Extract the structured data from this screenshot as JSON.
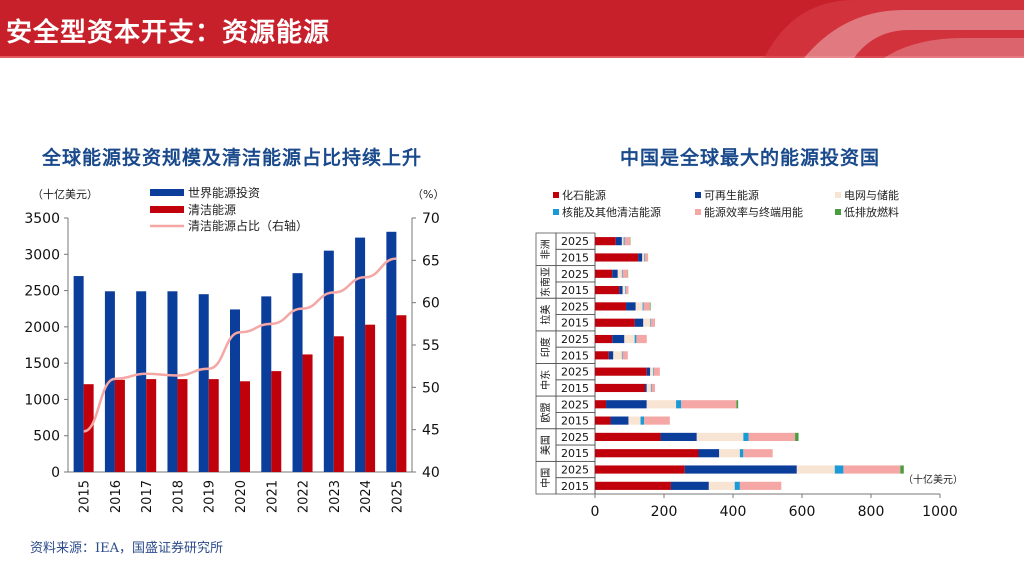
{
  "header": {
    "title": "安全型资本开支：资源能源"
  },
  "colors": {
    "brand": "#c8202a",
    "blue": "#0b3d9a",
    "red": "#c0000b",
    "pink": "#f4a7a4",
    "lightblue": "#1a9bd7",
    "cream": "#f8e4d2",
    "green": "#4a9d3e"
  },
  "source_note": "资料来源：IEA，国盛证券研究所",
  "chart_data": [
    {
      "type": "bar",
      "title": "全球能源投资规模及清洁能源占比持续上升",
      "left_axis_unit": "（十亿美元）",
      "right_axis_unit": "（%）",
      "categories": [
        "2015",
        "2016",
        "2017",
        "2018",
        "2019",
        "2020",
        "2021",
        "2022",
        "2023",
        "2024",
        "2025"
      ],
      "ylim": [
        0,
        3500
      ],
      "yticks": [
        "0",
        "500",
        "1000",
        "1500",
        "2000",
        "2500",
        "3000",
        "3500"
      ],
      "y2lim": [
        40,
        70
      ],
      "y2ticks": [
        "40",
        "45",
        "50",
        "55",
        "60",
        "65",
        "70"
      ],
      "series": [
        {
          "name": "世界能源投资",
          "values": [
            2700,
            2490,
            2490,
            2490,
            2450,
            2240,
            2420,
            2740,
            3050,
            3230,
            3310
          ]
        },
        {
          "name": "清洁能源",
          "values": [
            1210,
            1270,
            1280,
            1280,
            1280,
            1250,
            1390,
            1620,
            1870,
            2030,
            2160
          ]
        },
        {
          "name": "清洁能源占比（右轴）",
          "values": [
            44.8,
            51.0,
            51.6,
            51.4,
            52.2,
            56.5,
            57.5,
            59.3,
            61.2,
            63.0,
            65.2
          ]
        }
      ]
    },
    {
      "type": "bar",
      "orientation": "horizontal-stacked",
      "title": "中国是全球最大的能源投资国",
      "unit_note": "（十亿美元）",
      "xlim": [
        0,
        1000
      ],
      "xticks": [
        "0",
        "200",
        "400",
        "600",
        "800",
        "1000"
      ],
      "series_names": [
        "化石能源",
        "可再生能源",
        "电网与储能",
        "核能及其他清洁能源",
        "能源效率与终端用能",
        "低排放燃料"
      ],
      "groups": [
        {
          "region": "非洲",
          "rows": [
            {
              "year": "2025",
              "values": [
                60,
                18,
                5,
                3,
                16,
                1
              ]
            },
            {
              "year": "2015",
              "values": [
                125,
                12,
                5,
                2,
                10,
                0
              ]
            }
          ]
        },
        {
          "region": "东南亚",
          "rows": [
            {
              "year": "2025",
              "values": [
                50,
                16,
                12,
                2,
                15,
                1
              ]
            },
            {
              "year": "2015",
              "values": [
                70,
                10,
                8,
                2,
                7,
                0
              ]
            }
          ]
        },
        {
          "region": "拉美",
          "rows": [
            {
              "year": "2025",
              "values": [
                90,
                28,
                20,
                3,
                18,
                2
              ]
            },
            {
              "year": "2015",
              "values": [
                115,
                25,
                20,
                2,
                12,
                0
              ]
            }
          ]
        },
        {
          "region": "印度",
          "rows": [
            {
              "year": "2025",
              "values": [
                50,
                35,
                30,
                5,
                30,
                0
              ]
            },
            {
              "year": "2015",
              "values": [
                40,
                13,
                25,
                2,
                15,
                0
              ]
            }
          ]
        },
        {
          "region": "中东",
          "rows": [
            {
              "year": "2025",
              "values": [
                150,
                10,
                8,
                2,
                18,
                0
              ]
            },
            {
              "year": "2015",
              "values": [
                145,
                5,
                12,
                2,
                10,
                0
              ]
            }
          ]
        },
        {
          "region": "欧盟",
          "rows": [
            {
              "year": "2025",
              "values": [
                32,
                118,
                85,
                15,
                160,
                5
              ]
            },
            {
              "year": "2015",
              "values": [
                45,
                52,
                35,
                10,
                75,
                0
              ]
            }
          ]
        },
        {
          "region": "美国",
          "rows": [
            {
              "year": "2025",
              "values": [
                190,
                105,
                135,
                15,
                135,
                10
              ]
            },
            {
              "year": "2015",
              "values": [
                300,
                60,
                60,
                10,
                85,
                0
              ]
            }
          ]
        },
        {
          "region": "中国",
          "rows": [
            {
              "year": "2025",
              "values": [
                260,
                325,
                110,
                25,
                165,
                10
              ]
            },
            {
              "year": "2015",
              "values": [
                220,
                110,
                75,
                15,
                120,
                0
              ]
            }
          ]
        }
      ]
    }
  ]
}
